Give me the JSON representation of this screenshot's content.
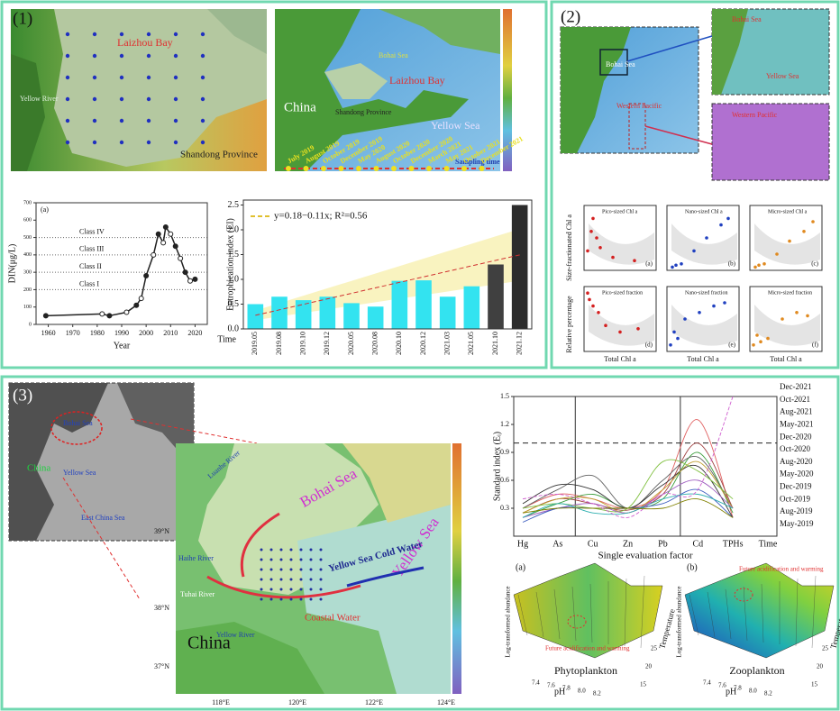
{
  "panel1": {
    "label": "(1)",
    "map_laizhou": {
      "labels": [
        "Laizhou Bay",
        "Yellow River",
        "Shandong Province"
      ]
    },
    "map_region": {
      "labels": [
        "China",
        "Bohai Sea",
        "Laizhou Bay",
        "Shandong Province",
        "Yellow Sea"
      ],
      "timeline": [
        "July 2019",
        "August 2019",
        "October 2019",
        "December 2019",
        "May 2020",
        "August 2020",
        "October 2020",
        "December 2020",
        "March 2021",
        "May 2021",
        "October 2021",
        "December 2021"
      ],
      "timeline_title": "Sampling time"
    },
    "din_chart": {
      "type": "line",
      "panel_label": "(a)",
      "x_label": "Year",
      "y_label": "DIN(μg/L)",
      "xlim": [
        1955,
        2025
      ],
      "xticks": [
        1960,
        1970,
        1980,
        1990,
        2000,
        2010,
        2020
      ],
      "ylim": [
        0,
        700
      ],
      "yticks": [
        0,
        100,
        200,
        300,
        400,
        500,
        600,
        700
      ],
      "x": [
        1959,
        1982,
        1985,
        1992,
        1996,
        1998,
        2000,
        2003,
        2005,
        2007,
        2008,
        2010,
        2012,
        2014,
        2016,
        2018,
        2020
      ],
      "values": [
        50,
        60,
        50,
        70,
        110,
        150,
        280,
        400,
        520,
        470,
        560,
        520,
        450,
        380,
        300,
        250,
        260
      ],
      "color": "#222222",
      "classes": [
        {
          "name": "Class I",
          "value": 200
        },
        {
          "name": "Class II",
          "value": 300
        },
        {
          "name": "Class III",
          "value": 400
        },
        {
          "name": "Class IV",
          "value": 500
        }
      ]
    },
    "ei_chart": {
      "type": "bar",
      "y_label": "Eutrophication index (EI)",
      "x_label": "Time",
      "categories": [
        "2019.05",
        "2019.08",
        "2019.10",
        "2019.12",
        "2020.05",
        "2020.08",
        "2020.10",
        "2020.12",
        "2021.03",
        "2021.05",
        "2021.10",
        "2021.12"
      ],
      "values": [
        0.5,
        0.65,
        0.58,
        0.65,
        0.52,
        0.45,
        0.97,
        0.98,
        0.65,
        0.86,
        1.3,
        2.5
      ],
      "colors": [
        "#33e3f0",
        "#33e3f0",
        "#33e3f0",
        "#33e3f0",
        "#33e3f0",
        "#33e3f0",
        "#33e3f0",
        "#33e3f0",
        "#33e3f0",
        "#33e3f0",
        "#404040",
        "#2c2c2c"
      ],
      "ylim": [
        0,
        2.6
      ],
      "yticks": [
        {
          "value": 0,
          "label": "0.0"
        },
        {
          "value": 0.5,
          "label": "0.5"
        },
        {
          "value": 1,
          "label": "1.0"
        },
        {
          "value": 1.5,
          "label": "1.5"
        },
        {
          "value": 2,
          "label": "2.0"
        },
        {
          "value": 2.5,
          "label": "2.5"
        }
      ],
      "trend_label": "y=0.18−0.11x; R²=0.56"
    }
  },
  "panel2": {
    "label": "(2)",
    "map_labels": [
      "Bohai Sea",
      "Yellow Sea",
      "Western Pacific"
    ],
    "y_labels": [
      "Size-fractionated Chl a",
      "Relative percentage"
    ],
    "x_label": "Total Chl a",
    "subplots": [
      {
        "type": "scatter",
        "title": "Pico-sized Chl a",
        "panel_label": "(a)",
        "color": "#d42020",
        "xlim": [
          0,
          4
        ],
        "ylim": [
          0,
          1
        ],
        "points": [
          [
            0.2,
            0.3
          ],
          [
            0.4,
            0.6
          ],
          [
            0.5,
            0.8
          ],
          [
            0.7,
            0.5
          ],
          [
            0.9,
            0.35
          ],
          [
            1.6,
            0.2
          ],
          [
            2.8,
            0.15
          ]
        ]
      },
      {
        "type": "scatter",
        "title": "Nano-sized Chl a",
        "panel_label": "(b)",
        "color": "#2040c0",
        "xlim": [
          0,
          4
        ],
        "ylim": [
          0,
          1
        ],
        "points": [
          [
            0.3,
            0.05
          ],
          [
            0.5,
            0.08
          ],
          [
            0.8,
            0.1
          ],
          [
            1.5,
            0.3
          ],
          [
            2.2,
            0.5
          ],
          [
            3.0,
            0.7
          ],
          [
            3.4,
            0.8
          ]
        ]
      },
      {
        "type": "scatter",
        "title": "Micro-sized Chl a",
        "panel_label": "(c)",
        "color": "#e08a20",
        "xlim": [
          0,
          4
        ],
        "ylim": [
          0,
          1
        ],
        "points": [
          [
            0.3,
            0.05
          ],
          [
            0.5,
            0.08
          ],
          [
            0.8,
            0.1
          ],
          [
            1.5,
            0.25
          ],
          [
            2.2,
            0.45
          ],
          [
            3.0,
            0.6
          ],
          [
            3.5,
            0.75
          ]
        ]
      },
      {
        "type": "scatter",
        "title": "Pico-sized fraction",
        "panel_label": "(d)",
        "color": "#d42020",
        "xlim": [
          0,
          4
        ],
        "ylim": [
          0,
          1
        ],
        "points": [
          [
            0.2,
            0.9
          ],
          [
            0.3,
            0.8
          ],
          [
            0.5,
            0.7
          ],
          [
            0.8,
            0.6
          ],
          [
            1.2,
            0.4
          ],
          [
            2.0,
            0.3
          ],
          [
            3.0,
            0.35
          ]
        ]
      },
      {
        "type": "scatter",
        "title": "Nano-sized fraction",
        "panel_label": "(e)",
        "color": "#2040c0",
        "xlim": [
          0,
          4
        ],
        "ylim": [
          0,
          1
        ],
        "points": [
          [
            0.2,
            0.1
          ],
          [
            0.4,
            0.3
          ],
          [
            0.6,
            0.2
          ],
          [
            1.0,
            0.5
          ],
          [
            1.8,
            0.6
          ],
          [
            2.6,
            0.7
          ],
          [
            3.2,
            0.75
          ]
        ]
      },
      {
        "type": "scatter",
        "title": "Micro-sized fraction",
        "panel_label": "(f)",
        "color": "#e08a20",
        "xlim": [
          0,
          4
        ],
        "ylim": [
          0,
          1
        ],
        "points": [
          [
            0.2,
            0.1
          ],
          [
            0.4,
            0.25
          ],
          [
            0.6,
            0.15
          ],
          [
            1.0,
            0.2
          ],
          [
            1.8,
            0.5
          ],
          [
            2.6,
            0.6
          ],
          [
            3.2,
            0.55
          ]
        ]
      }
    ]
  },
  "panel3": {
    "label": "(3)",
    "inset_labels": [
      "Bohai Sea",
      "China",
      "Yellow Sea",
      "East China Sea"
    ],
    "map_labels": [
      "Bohai Sea",
      "Yellow Sea",
      "Luanhe River",
      "Haihe River",
      "Tuhai River",
      "Yellow River",
      "China",
      "Coastal Water",
      "Yellow Sea Cold Water"
    ],
    "lat_ticks": [
      "39°N",
      "38°N",
      "37°N"
    ],
    "lon_ticks": [
      "118°E",
      "120°E",
      "122°E",
      "124°E"
    ],
    "standard_chart": {
      "type": "line",
      "y_label": "Standard index (Eᵢ)",
      "x_label": "Single evaluation factor",
      "categories": [
        "Hg",
        "As",
        "Cu",
        "Zn",
        "Pb",
        "Cd",
        "TPHs",
        "Time"
      ],
      "ylim": [
        0,
        1.5
      ],
      "yticks": [
        0.3,
        0.6,
        0.9,
        1.2,
        1.5
      ],
      "threshold": 1,
      "series": [
        {
          "name": "Dec-2021",
          "color": "#e06060",
          "values": [
            0.3,
            0.45,
            0.4,
            0.3,
            0.5,
            1.25,
            0.2,
            null
          ]
        },
        {
          "name": "Oct-2021",
          "color": "#a04040",
          "values": [
            0.25,
            0.4,
            0.35,
            0.28,
            0.45,
            1.0,
            0.3,
            null
          ]
        },
        {
          "name": "Aug-2021",
          "color": "#40a040",
          "values": [
            0.2,
            0.35,
            0.45,
            0.3,
            0.4,
            0.9,
            0.25,
            null
          ]
        },
        {
          "name": "May-2021",
          "color": "#606060",
          "values": [
            0.3,
            0.5,
            0.65,
            0.3,
            0.6,
            0.85,
            0.3,
            null
          ]
        },
        {
          "name": "Dec-2020",
          "color": "#303030",
          "values": [
            0.35,
            0.55,
            0.5,
            0.3,
            0.55,
            0.75,
            0.2,
            null
          ]
        },
        {
          "name": "Oct-2020",
          "color": "#c0a030",
          "values": [
            0.25,
            0.4,
            0.4,
            0.25,
            0.5,
            0.8,
            0.3,
            null
          ]
        },
        {
          "name": "Aug-2020",
          "color": "#80c040",
          "values": [
            0.3,
            0.35,
            0.3,
            0.3,
            0.8,
            0.7,
            0.4,
            null
          ]
        },
        {
          "name": "May-2020",
          "color": "#a060c0",
          "values": [
            0.2,
            0.3,
            0.35,
            0.25,
            0.45,
            0.6,
            0.3,
            null
          ]
        },
        {
          "name": "Dec-2019",
          "color": "#4060c0",
          "values": [
            0.15,
            0.3,
            0.3,
            0.3,
            0.35,
            0.5,
            0.2,
            null
          ]
        },
        {
          "name": "Oct-2019",
          "color": "#30b0b0",
          "values": [
            0.2,
            0.35,
            0.25,
            0.25,
            0.4,
            0.45,
            0.3,
            null
          ]
        },
        {
          "name": "Aug-2019",
          "color": "#808000",
          "values": [
            0.25,
            0.3,
            0.3,
            0.3,
            0.3,
            0.4,
            0.2,
            null
          ]
        },
        {
          "name": "May-2019",
          "color": "#d060d0",
          "values": [
            0.4,
            0.45,
            0.35,
            0.2,
            0.45,
            0.5,
            1.5,
            null
          ]
        }
      ]
    },
    "surfaces": [
      {
        "panel_label": "(a)",
        "title": "Phytoplankton",
        "annotation": "Future acidification and warming",
        "x_label": "pH",
        "y_label": "Temperature",
        "z_label": "Log-transformed abundance",
        "ph_ticks": [
          "7.4",
          "7.6",
          "7.8",
          "8.0",
          "8.2"
        ],
        "temp_ticks": [
          "15",
          "20",
          "25"
        ]
      },
      {
        "panel_label": "(b)",
        "title": "Zooplankton",
        "annotation": "Future acidification and warming",
        "x_label": "pH",
        "y_label": "Temperature",
        "z_label": "Log-transformed abundance",
        "ph_ticks": [
          "7.4",
          "7.6",
          "7.8",
          "8.0",
          "8.2"
        ],
        "temp_ticks": [
          "15",
          "20",
          "25"
        ]
      }
    ]
  }
}
